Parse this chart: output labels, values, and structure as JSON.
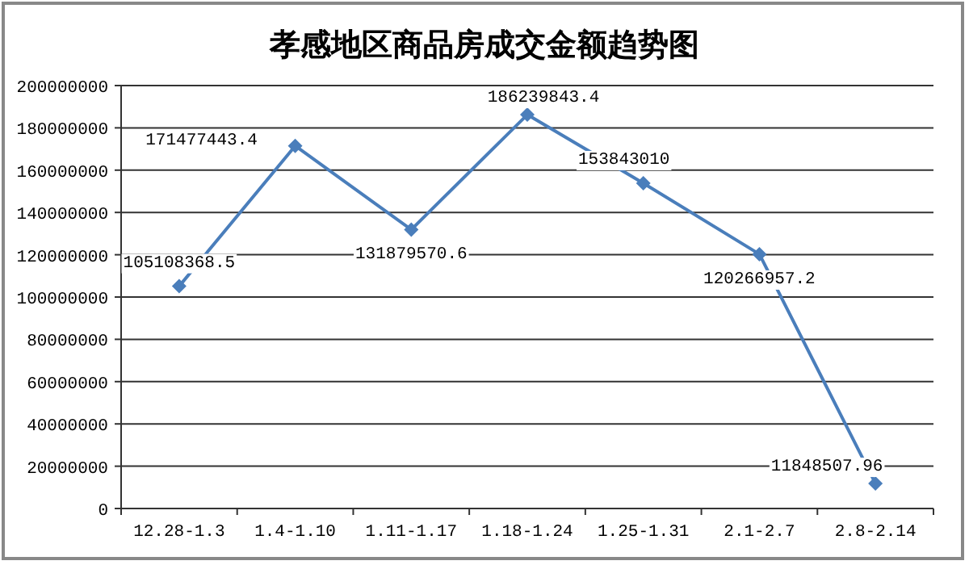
{
  "chart_data": {
    "type": "line",
    "title": "孝感地区商品房成交金额趋势图",
    "categories": [
      "12.28-1.3",
      "1.4-1.10",
      "1.11-1.17",
      "1.18-1.24",
      "1.25-1.31",
      "2.1-2.7",
      "2.8-2.14"
    ],
    "series": [
      {
        "color": "#4a7ebb",
        "values": [
          105108368.5,
          171477443.4,
          131879570.6,
          186239843.4,
          153843010,
          120266957.2,
          11848507.96
        ]
      }
    ],
    "ylim": [
      0,
      200000000
    ],
    "yticks": [
      0,
      20000000,
      40000000,
      60000000,
      80000000,
      100000000,
      120000000,
      140000000,
      160000000,
      180000000,
      200000000
    ],
    "grid": "y",
    "marker": "diamond",
    "line_style": "solid",
    "data_labels": true
  }
}
